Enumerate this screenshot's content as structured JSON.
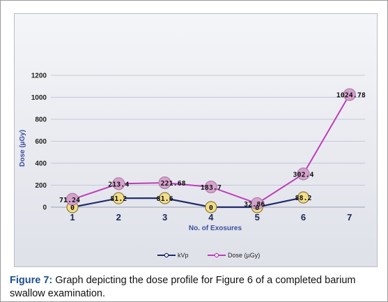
{
  "chart_data": {
    "type": "line",
    "categories": [
      "1",
      "2",
      "3",
      "4",
      "5",
      "6",
      "7"
    ],
    "xlabel": "No. of Exosures",
    "ylabel": "Dose (µGy)",
    "ylim": [
      0,
      1200
    ],
    "yticks": [
      0,
      200,
      400,
      600,
      800,
      1000,
      1200
    ],
    "grid": true,
    "legend": "bottom",
    "series": [
      {
        "name": "kVp",
        "values": [
          0,
          81.2,
          81.6,
          0,
          0,
          88.2,
          null
        ],
        "labels": [
          "0",
          "81.2",
          "81.6",
          "0",
          "0",
          "88.2",
          ""
        ],
        "color": "#1f2a6b",
        "marker_fill": "#f1dd8b",
        "marker_stroke": "#8a7a3a"
      },
      {
        "name": "Dose (µGy)",
        "values": [
          71.24,
          213.4,
          221.68,
          183.7,
          32.86,
          302.4,
          1024.78
        ],
        "labels": [
          "71.24",
          "213.4",
          "221.68",
          "183.7",
          "32.86",
          "302.4",
          "1024.78"
        ],
        "color": "#c03cbc",
        "marker_fill": "#d4a3cc",
        "marker_stroke": "#b47aa8"
      }
    ]
  },
  "caption": {
    "label": "Figure 7:",
    "text": " Graph depicting the dose profile for Figure 6 of a completed barium swallow examination."
  }
}
